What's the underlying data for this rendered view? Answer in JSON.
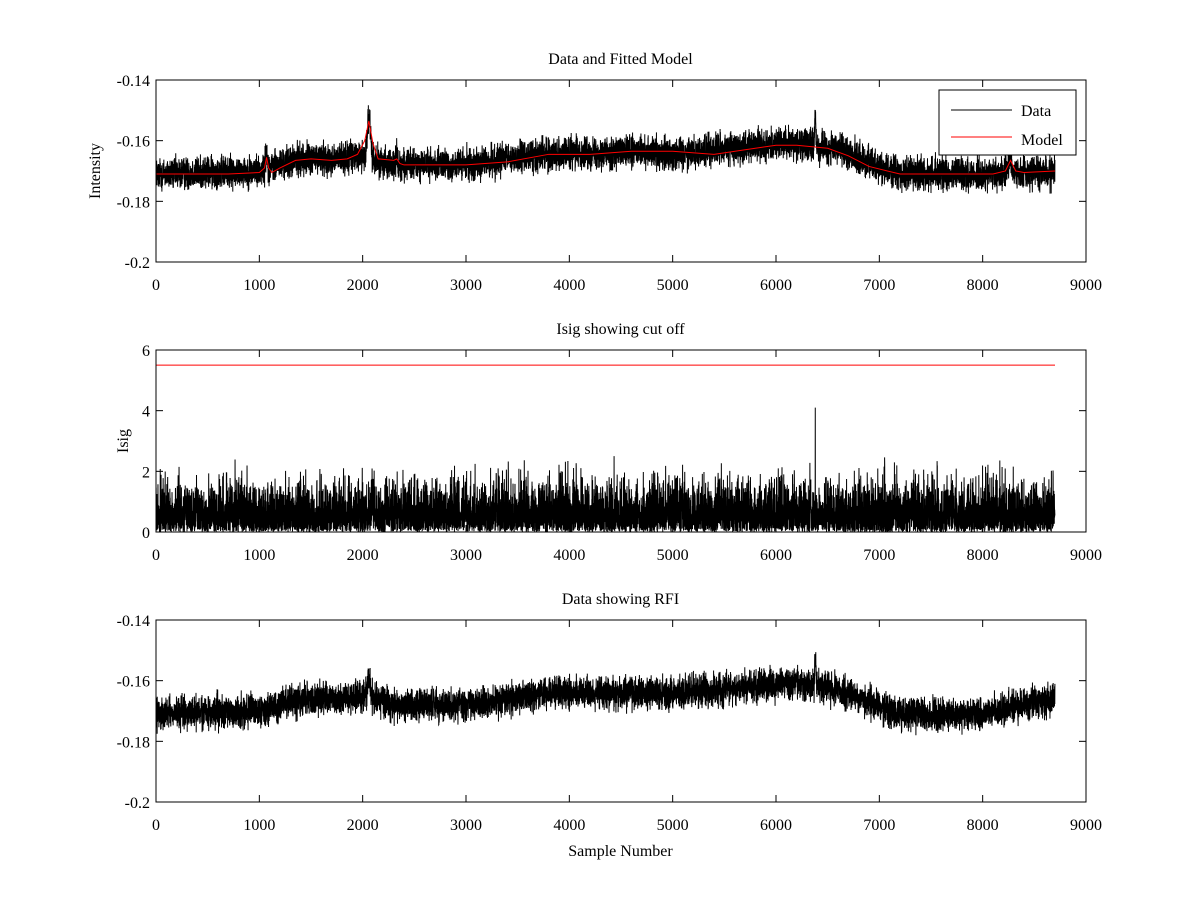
{
  "chart_data": [
    {
      "type": "line",
      "title": "Data and Fitted Model",
      "xlabel": "",
      "ylabel": "Intensity",
      "xlim": [
        0,
        9000
      ],
      "ylim": [
        -0.2,
        -0.14
      ],
      "x_ticks": [
        0,
        1000,
        2000,
        3000,
        4000,
        5000,
        6000,
        7000,
        8000,
        9000
      ],
      "y_ticks": [
        -0.2,
        -0.18,
        -0.16,
        -0.14
      ],
      "x_tick_labels": [
        "0",
        "1000",
        "2000",
        "3000",
        "4000",
        "5000",
        "6000",
        "7000",
        "8000",
        "9000"
      ],
      "y_tick_labels": [
        "-0.2",
        "-0.18",
        "-0.16",
        "-0.14"
      ],
      "grid": false,
      "legend": {
        "position": "top-right",
        "entries": [
          "Data",
          "Model"
        ]
      },
      "series": [
        {
          "name": "Data",
          "color": "#000000",
          "kind": "noisy",
          "n_samples": 8700,
          "baseline": {
            "x": [
              0,
              1000,
              1200,
              1400,
              1800,
              2000,
              2300,
              2600,
              3000,
              3600,
              4000,
              5000,
              5500,
              6000,
              6200,
              6600,
              6800,
              7200,
              8000,
              8700
            ],
            "y": [
              -0.171,
              -0.17,
              -0.168,
              -0.166,
              -0.166,
              -0.165,
              -0.168,
              -0.168,
              -0.168,
              -0.165,
              -0.164,
              -0.164,
              -0.163,
              -0.161,
              -0.161,
              -0.163,
              -0.166,
              -0.171,
              -0.171,
              -0.17
            ]
          },
          "noise_amplitude": 0.0045,
          "peaks": [
            {
              "x": 1070,
              "height": 0.005,
              "width": 15
            },
            {
              "x": 2060,
              "height": 0.013,
              "width": 22
            },
            {
              "x": 2330,
              "height": 0.003,
              "width": 15
            },
            {
              "x": 6380,
              "height": 0.01,
              "width": 8
            },
            {
              "x": 8270,
              "height": 0.004,
              "width": 20
            }
          ]
        },
        {
          "name": "Model",
          "color": "#ff0000",
          "kind": "smooth",
          "x": [
            0,
            700,
            1000,
            1050,
            1070,
            1090,
            1120,
            1200,
            1350,
            1500,
            1700,
            1850,
            1950,
            2020,
            2060,
            2100,
            2150,
            2300,
            2330,
            2360,
            2400,
            2600,
            3000,
            3400,
            3800,
            4200,
            4600,
            5000,
            5400,
            5800,
            6000,
            6200,
            6500,
            6700,
            6900,
            7200,
            7500,
            8100,
            8220,
            8270,
            8320,
            8400,
            8700
          ],
          "y": [
            -0.171,
            -0.171,
            -0.1705,
            -0.169,
            -0.1655,
            -0.169,
            -0.1705,
            -0.169,
            -0.1665,
            -0.166,
            -0.1665,
            -0.166,
            -0.1645,
            -0.16,
            -0.1535,
            -0.161,
            -0.166,
            -0.1665,
            -0.166,
            -0.1675,
            -0.168,
            -0.168,
            -0.168,
            -0.167,
            -0.1645,
            -0.1645,
            -0.1635,
            -0.1635,
            -0.1645,
            -0.1625,
            -0.1615,
            -0.1615,
            -0.1625,
            -0.165,
            -0.1685,
            -0.171,
            -0.171,
            -0.171,
            -0.17,
            -0.1665,
            -0.17,
            -0.1705,
            -0.17
          ]
        }
      ]
    },
    {
      "type": "line",
      "title": "Isig showing cut off",
      "xlabel": "",
      "ylabel": "Isig",
      "xlim": [
        0,
        9000
      ],
      "ylim": [
        0,
        6
      ],
      "x_ticks": [
        0,
        1000,
        2000,
        3000,
        4000,
        5000,
        6000,
        7000,
        8000,
        9000
      ],
      "y_ticks": [
        0,
        2,
        4,
        6
      ],
      "x_tick_labels": [
        "0",
        "1000",
        "2000",
        "3000",
        "4000",
        "5000",
        "6000",
        "7000",
        "8000",
        "9000"
      ],
      "y_tick_labels": [
        "0",
        "2",
        "4",
        "6"
      ],
      "grid": false,
      "series": [
        {
          "color": "#000000",
          "kind": "abs_noise",
          "n_samples": 8700,
          "scale": 0.8,
          "max": 4.1
        },
        {
          "color": "#ff0000",
          "kind": "hline",
          "x": [
            0,
            8700
          ],
          "y": [
            5.5,
            5.5
          ]
        }
      ]
    },
    {
      "type": "line",
      "title": "Data showing RFI",
      "xlabel": "Sample Number",
      "ylabel": "",
      "xlim": [
        0,
        9000
      ],
      "ylim": [
        -0.2,
        -0.14
      ],
      "x_ticks": [
        0,
        1000,
        2000,
        3000,
        4000,
        5000,
        6000,
        7000,
        8000,
        9000
      ],
      "y_ticks": [
        -0.2,
        -0.18,
        -0.16,
        -0.14
      ],
      "x_tick_labels": [
        "0",
        "1000",
        "2000",
        "3000",
        "4000",
        "5000",
        "6000",
        "7000",
        "8000",
        "9000"
      ],
      "y_tick_labels": [
        "-0.2",
        "-0.18",
        "-0.16",
        "-0.14"
      ],
      "grid": false,
      "series": [
        {
          "color": "#000000",
          "kind": "noisy",
          "n_samples": 8700,
          "baseline": {
            "x": [
              0,
              1000,
              1200,
              1400,
              1800,
              2000,
              2300,
              2600,
              3000,
              3600,
              4000,
              5000,
              5500,
              6000,
              6200,
              6600,
              6800,
              7200,
              8000,
              8700
            ],
            "y": [
              -0.171,
              -0.17,
              -0.168,
              -0.166,
              -0.166,
              -0.165,
              -0.168,
              -0.168,
              -0.168,
              -0.165,
              -0.164,
              -0.164,
              -0.163,
              -0.161,
              -0.161,
              -0.163,
              -0.166,
              -0.171,
              -0.171,
              -0.166
            ]
          },
          "noise_amplitude": 0.0045,
          "peaks": [
            {
              "x": 2060,
              "height": 0.006,
              "width": 20
            },
            {
              "x": 6380,
              "height": 0.01,
              "width": 8
            }
          ]
        }
      ]
    }
  ]
}
